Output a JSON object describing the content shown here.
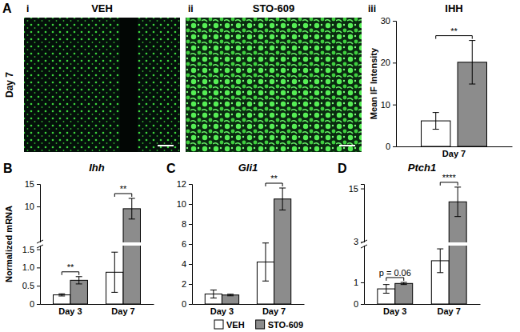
{
  "images": {
    "panel_label": "A",
    "row_label": "Day 7",
    "panels": [
      {
        "label": "i",
        "title": "VEH"
      },
      {
        "label": "ii",
        "title": "STO-609"
      }
    ]
  },
  "legend": [
    {
      "name": "VEH",
      "color": "#ffffff"
    },
    {
      "name": "STO-609",
      "color": "#8c8c8c"
    }
  ],
  "chart_data": [
    {
      "type": "bar",
      "panel_label": "iii",
      "title": "IHH",
      "y_label": "Mean IF Intensity",
      "categories": [
        "Day 7"
      ],
      "series": [
        {
          "color": "#ffffff",
          "values": [
            6.1
          ],
          "errors": [
            2.0
          ]
        },
        {
          "color": "#8c8c8c",
          "values": [
            20.1
          ],
          "errors": [
            5.2
          ]
        }
      ],
      "ylim": [
        0,
        30
      ],
      "yticks": [
        0,
        10,
        20,
        30
      ],
      "annotations": [
        {
          "text": "**",
          "category": 0
        }
      ]
    },
    {
      "type": "bar",
      "panel_label": "B",
      "title": "Ihh",
      "y_label": "Normalized mRNA",
      "categories": [
        "Day 3",
        "Day 7"
      ],
      "series": [
        {
          "color": "#ffffff",
          "values": [
            0.25,
            0.87
          ],
          "errors": [
            0.03,
            0.55
          ]
        },
        {
          "color": "#8c8c8c",
          "values": [
            0.65,
            9.5
          ],
          "errors": [
            0.1,
            2.3
          ]
        }
      ],
      "ylim": [
        0,
        15
      ],
      "y_break": [
        1.6,
        2
      ],
      "yticks": [
        0,
        0.5,
        {
          "value": 1,
          "label": "1.0"
        },
        1.5,
        10,
        15
      ],
      "annotations": [
        {
          "text": "**",
          "category": 0
        },
        {
          "text": "**",
          "category": 1
        }
      ]
    },
    {
      "type": "bar",
      "panel_label": "C",
      "title": "Gli1",
      "categories": [
        "Day 3",
        "Day 7"
      ],
      "series": [
        {
          "color": "#ffffff",
          "values": [
            1.0,
            4.2
          ],
          "errors": [
            0.4,
            1.9
          ]
        },
        {
          "color": "#8c8c8c",
          "values": [
            0.9,
            10.5
          ],
          "errors": [
            0.08,
            1.1
          ]
        }
      ],
      "ylim": [
        0,
        12
      ],
      "yticks": [
        0,
        2,
        4,
        6,
        8,
        10,
        12
      ],
      "annotations": [
        {
          "text": "**",
          "category": 1
        }
      ]
    },
    {
      "type": "bar",
      "panel_label": "D",
      "title": "Ptch1",
      "categories": [
        "Day 3",
        "Day 7"
      ],
      "series": [
        {
          "color": "#ffffff",
          "values": [
            0.7,
            2.0
          ],
          "errors": [
            0.2,
            0.55
          ]
        },
        {
          "color": "#8c8c8c",
          "values": [
            0.95,
            12.0
          ],
          "errors": [
            0.05,
            3.3
          ]
        }
      ],
      "ylim": [
        0,
        16
      ],
      "y_break": [
        2.7,
        2.9
      ],
      "yticks": [
        0,
        1,
        3,
        15
      ],
      "annotations": [
        {
          "text": "p = 0.06",
          "category": 0
        },
        {
          "text": "****",
          "category": 1
        }
      ]
    }
  ]
}
